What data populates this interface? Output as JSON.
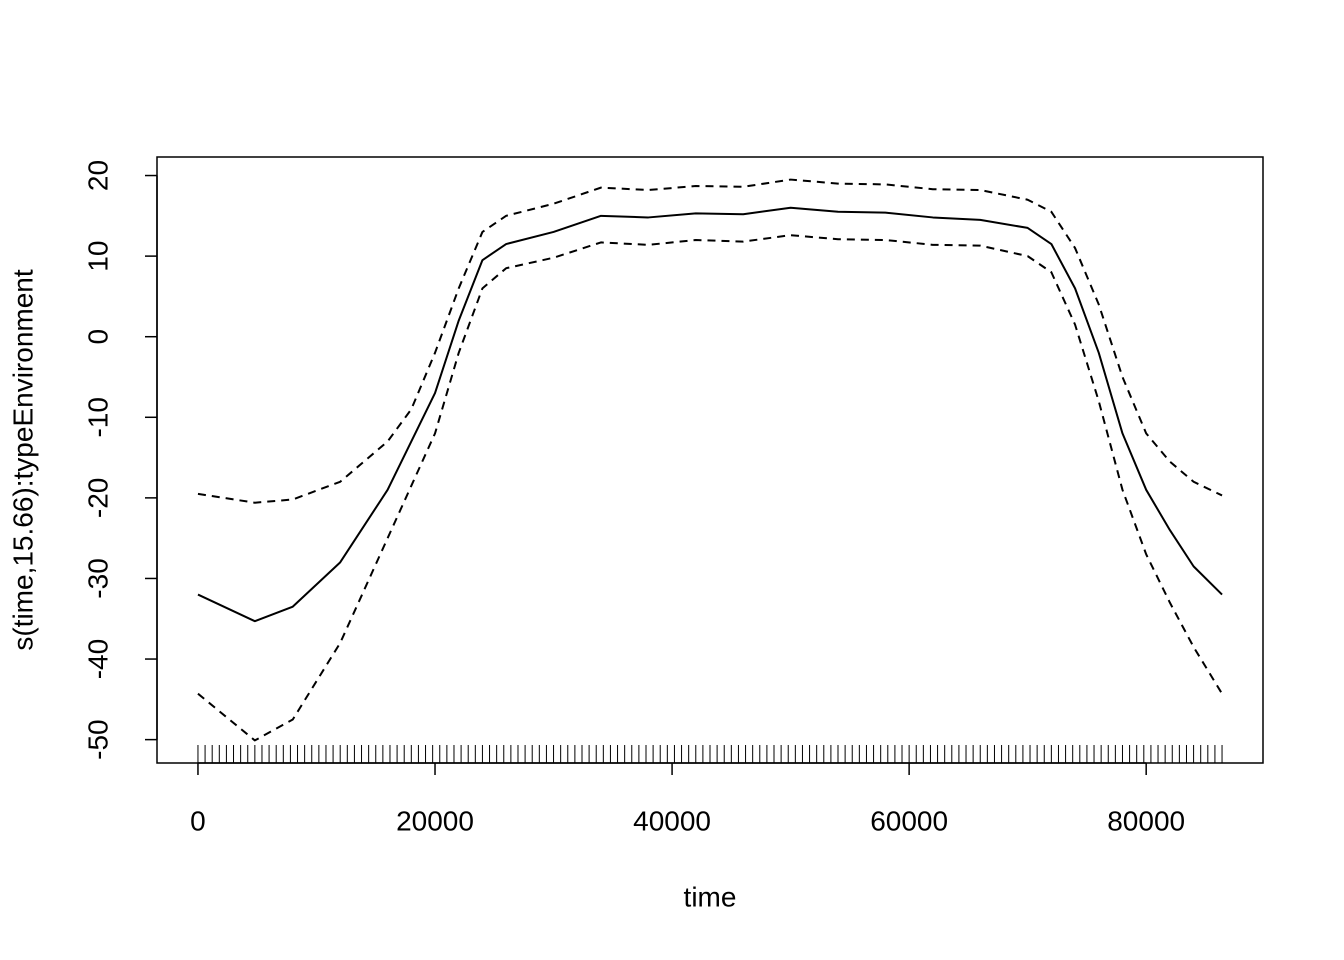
{
  "chart_data": {
    "type": "line",
    "xlabel": "time",
    "ylabel": "s(time,15.66):typeEnvironment",
    "x": [
      0,
      4800,
      8000,
      12000,
      16000,
      18000,
      20000,
      22000,
      24000,
      26000,
      30000,
      34000,
      38000,
      42000,
      46000,
      50000,
      54000,
      58000,
      62000,
      66000,
      70000,
      72000,
      74000,
      76000,
      78000,
      80000,
      82000,
      84000,
      86400
    ],
    "series": [
      {
        "color": "#000000",
        "dash": false,
        "values": [
          -32,
          -35.3,
          -33.5,
          -28,
          -19,
          -13,
          -7,
          2,
          9.5,
          11.5,
          13,
          15,
          14.8,
          15.3,
          15.2,
          16,
          15.5,
          15.4,
          14.8,
          14.5,
          13.5,
          11.5,
          6,
          -2,
          -12,
          -19,
          -24,
          -28.5,
          -32
        ]
      },
      {
        "color": "#000000",
        "dash": true,
        "values": [
          -19.5,
          -20.6,
          -20.2,
          -18,
          -13,
          -9,
          -2,
          6,
          13,
          15,
          16.5,
          18.5,
          18.2,
          18.7,
          18.6,
          19.5,
          19,
          18.9,
          18.3,
          18.2,
          17,
          15.5,
          11,
          4,
          -5,
          -12,
          -15.5,
          -18,
          -19.7
        ]
      },
      {
        "color": "#000000",
        "dash": true,
        "values": [
          -44.3,
          -50.1,
          -47.5,
          -38,
          -25,
          -18.5,
          -12,
          -2,
          6,
          8.5,
          9.8,
          11.7,
          11.4,
          12,
          11.8,
          12.6,
          12.1,
          12,
          11.4,
          11.3,
          10,
          8,
          1.5,
          -8,
          -19,
          -27,
          -33,
          -38.5,
          -44.3
        ]
      }
    ],
    "rug": [
      0,
      600,
      1200,
      1800,
      2400,
      3000,
      3600,
      4200,
      4800,
      5400,
      6000,
      6600,
      7200,
      7800,
      8400,
      9000,
      9600,
      10200,
      10800,
      11400,
      12000,
      12600,
      13200,
      13800,
      14400,
      15000,
      15600,
      16200,
      16800,
      17400,
      18000,
      18600,
      19200,
      19800,
      20400,
      21000,
      21600,
      22200,
      22800,
      23400,
      24000,
      24600,
      25200,
      25800,
      26400,
      27000,
      27600,
      28200,
      28800,
      29400,
      30000,
      30600,
      31200,
      31800,
      32400,
      33000,
      33600,
      34200,
      34800,
      35400,
      36000,
      36600,
      37200,
      37800,
      38400,
      39000,
      39600,
      40200,
      40800,
      41400,
      42000,
      42600,
      43200,
      43800,
      44400,
      45000,
      45600,
      46200,
      46800,
      47400,
      48000,
      48600,
      49200,
      49800,
      50400,
      51000,
      51600,
      52200,
      52800,
      53400,
      54000,
      54600,
      55200,
      55800,
      56400,
      57000,
      57600,
      58200,
      58800,
      59400,
      60000,
      60600,
      61200,
      61800,
      62400,
      63000,
      63600,
      64200,
      64800,
      65400,
      66000,
      66600,
      67200,
      67800,
      68400,
      69000,
      69600,
      70200,
      70800,
      71400,
      72000,
      72600,
      73200,
      73800,
      74400,
      75000,
      75600,
      76200,
      76800,
      77400,
      78000,
      78600,
      79200,
      79800,
      80400,
      81000,
      81600,
      82200,
      82800,
      83400,
      84000,
      84600,
      85200,
      85800,
      86400
    ],
    "xlim": [
      -3456,
      89856
    ],
    "ylim": [
      -52.9,
      22.3
    ],
    "xticks": [
      0,
      20000,
      40000,
      60000,
      80000
    ],
    "yticks": [
      -50,
      -40,
      -30,
      -20,
      -10,
      0,
      10,
      20
    ]
  }
}
